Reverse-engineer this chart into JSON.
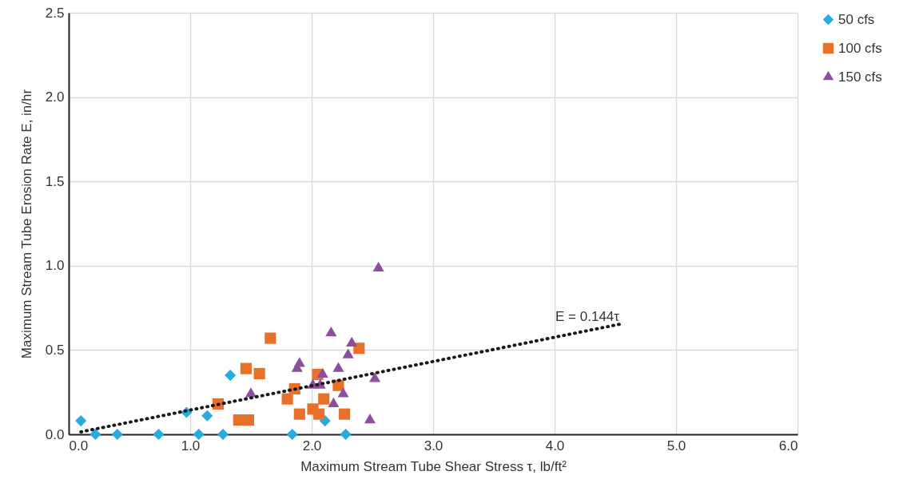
{
  "chart_data": {
    "type": "scatter",
    "xlabel": "Maximum Stream Tube Shear Stress τ, lb/ft²",
    "ylabel": "Maximum Stream Tube Erosion Rate E, in/hr",
    "xlim": [
      0,
      6
    ],
    "xticks": [
      {
        "value": 0,
        "label": "0.0"
      },
      {
        "value": 1,
        "label": "1.0"
      },
      {
        "value": 2,
        "label": "2.0"
      },
      {
        "value": 3,
        "label": "3.0"
      },
      {
        "value": 4,
        "label": "4.0"
      },
      {
        "value": 5,
        "label": "5.0"
      },
      {
        "value": 6,
        "label": "6.0"
      }
    ],
    "ylim": [
      0,
      2.5
    ],
    "yticks": [
      {
        "value": 0,
        "label": "0.0"
      },
      {
        "value": 0.5,
        "label": "0.5"
      },
      {
        "value": 1,
        "label": "1.0"
      },
      {
        "value": 1.5,
        "label": "1.5"
      },
      {
        "value": 2,
        "label": "2.0"
      },
      {
        "value": 2.5,
        "label": "2.5"
      }
    ],
    "grid": true,
    "legend": "right",
    "series": [
      {
        "name": "50 cfs",
        "color": "#29abe2",
        "marker": "diamond",
        "x": [
          0.1,
          0.22,
          0.4,
          0.74,
          0.97,
          1.07,
          1.14,
          1.27,
          1.33,
          1.84,
          2.11,
          2.28
        ],
        "values": [
          0.08,
          0,
          0,
          0,
          0.13,
          0,
          0.11,
          0,
          0.35,
          0,
          0.08,
          0
        ]
      },
      {
        "name": "100 cfs",
        "color": "#e8702a",
        "marker": "square",
        "x": [
          1.23,
          1.4,
          1.48,
          1.46,
          1.57,
          1.66,
          1.8,
          1.86,
          1.9,
          2.01,
          2.05,
          2.1,
          2.06,
          2.22,
          2.27,
          2.39
        ],
        "values": [
          0.18,
          0.085,
          0.085,
          0.39,
          0.36,
          0.57,
          0.21,
          0.27,
          0.12,
          0.15,
          0.355,
          0.21,
          0.12,
          0.29,
          0.12,
          0.51
        ]
      },
      {
        "name": "150 cfs",
        "color": "#8e4ea0",
        "marker": "triangle",
        "x": [
          1.5,
          1.88,
          1.9,
          2.01,
          2.07,
          2.09,
          2.16,
          2.18,
          2.22,
          2.26,
          2.3,
          2.33,
          2.52,
          2.48,
          2.55
        ],
        "values": [
          0.24,
          0.39,
          0.42,
          0.29,
          0.29,
          0.355,
          0.6,
          0.18,
          0.39,
          0.24,
          0.47,
          0.54,
          0.33,
          0.085,
          0.985
        ]
      },
      {
        "type": "line",
        "color": "#1a1a1a",
        "line_style": "dotted",
        "x": [
          0.1,
          4.55
        ],
        "values": [
          0.0144,
          0.655
        ]
      }
    ],
    "annotations": [
      {
        "text": "E = 0.144τ",
        "x": 4.27,
        "y": 0.63
      }
    ]
  }
}
